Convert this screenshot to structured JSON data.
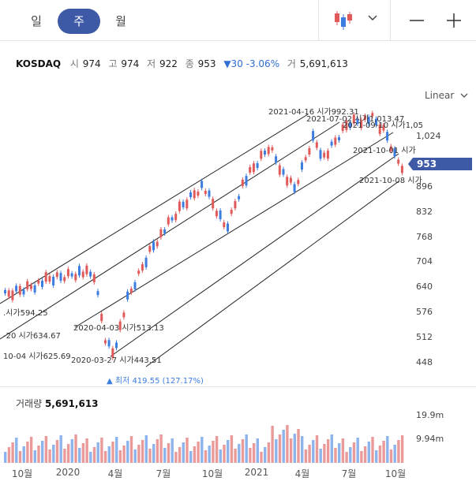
{
  "tabs": {
    "day": "일",
    "week": "주",
    "month": "월"
  },
  "quote": {
    "name": "KOSDAQ",
    "open_label": "시",
    "open": "974",
    "high_label": "고",
    "high": "974",
    "low_label": "저",
    "low": "922",
    "close_label": "종",
    "close": "953",
    "change": "▼30 -3.06%",
    "volume_label": "거",
    "volume": "5,691,613"
  },
  "scale": "Linear",
  "price_axis": {
    "ticks": [
      "1,024",
      "896",
      "832",
      "768",
      "704",
      "640",
      "576",
      "512",
      "448"
    ],
    "current": "953"
  },
  "annotations": {
    "a1": "2021-04-16 시가992.31",
    "a2": "2021-07-02 시가1,013.47",
    "a3": "2021-09-10 시가1,05",
    "a4": "2021-10-01 시가",
    "a5": "2021-10-08 시가",
    "a6": ".시가594.25",
    "a7": "-20 시가634.67",
    "a8": "10-04 시가625.69",
    "a9": "2020-04-03 시가513.13",
    "a10": "2020-03-27 시가443.51",
    "low": "▲ 최저 419.55 (127.17%)"
  },
  "volume_panel": {
    "label": "거래량",
    "value": "5,691,613",
    "ticks": [
      "19.9m",
      "9.94m"
    ]
  },
  "time_axis": [
    "10월",
    "2020",
    "4월",
    "7월",
    "10월",
    "2021",
    "4월",
    "7월",
    "10월"
  ],
  "colors": {
    "up": "#e05a5a",
    "down": "#3d7de0",
    "accent": "#3e5aa6"
  }
}
